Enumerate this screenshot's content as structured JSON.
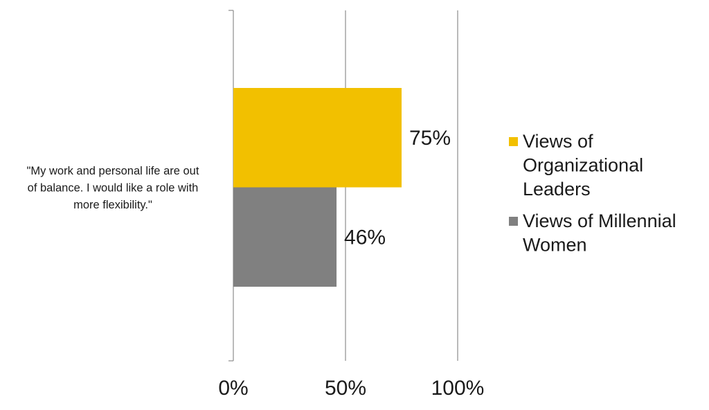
{
  "chart_data": {
    "type": "bar",
    "orientation": "horizontal",
    "categories": [
      "\"My work and personal life are out of balance. I would like a role with more flexibility.\""
    ],
    "category_label_lines": [
      "\"My work and personal life are out",
      "of balance. I would like a role with",
      "more flexibility.\""
    ],
    "series": [
      {
        "name": "Views of Organizational Leaders",
        "legend_lines": [
          "Views of",
          "Organizational",
          "Leaders"
        ],
        "values": [
          75
        ],
        "label": "75%",
        "color": "#F2C000"
      },
      {
        "name": "Views of Millennial Women",
        "legend_lines": [
          "Views of Millennial",
          "Women"
        ],
        "values": [
          46
        ],
        "label": "46%",
        "color": "#808080"
      }
    ],
    "x_ticks": [
      "0%",
      "50%",
      "100%"
    ],
    "xlim": [
      0,
      100
    ],
    "grid": true,
    "legend_position": "right",
    "title": "",
    "xlabel": "",
    "ylabel": ""
  }
}
